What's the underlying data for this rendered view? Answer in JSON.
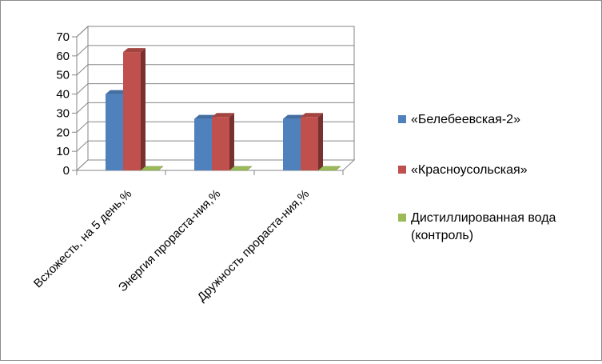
{
  "chart_data": {
    "type": "bar",
    "subtype": "3d-clustered-column",
    "title": "",
    "xlabel": "",
    "ylabel": "",
    "ylim": [
      0,
      70
    ],
    "yticks": [
      0,
      10,
      20,
      30,
      40,
      50,
      60,
      70
    ],
    "grid": true,
    "legend_position": "right",
    "categories": [
      "Всхожесть,  на 5 день,%",
      "Энергия прораста-ния,%",
      "Дружность прораста-ния,%"
    ],
    "series": [
      {
        "name": "«Белебеевская-2»",
        "color": "#4f81bd",
        "values": [
          40,
          27,
          27
        ]
      },
      {
        "name": "«Красноусольская»",
        "color": "#c0504d",
        "values": [
          62,
          28,
          28
        ]
      },
      {
        "name": "Дистиллированная вода (контроль)",
        "legend_lines": [
          "Дистиллированная вода",
          "(контроль)"
        ],
        "color": "#9bbb59",
        "values": [
          0,
          0,
          0
        ]
      }
    ]
  }
}
